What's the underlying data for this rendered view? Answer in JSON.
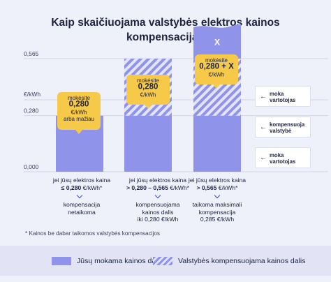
{
  "title_line1": "Kaip skaičiuojama valstybės elektros kainos",
  "title_line2": "kompensacija?",
  "chart_data": {
    "type": "bar",
    "stacked": true,
    "ylabel": "€/kWh",
    "yticks": [
      {
        "value": 0,
        "label": "0,000"
      },
      {
        "value": 0.28,
        "label": "0,280"
      },
      {
        "value": 0.565,
        "label": "0,565"
      }
    ],
    "ylim": [
      0,
      0.74
    ],
    "categories": [
      "jei jūsų elektros kaina ≤ 0,280 €/kWh*",
      "jei jūsų elektros kaina > 0,280 – 0,565 €/kWh*",
      "jei jūsų elektros kaina > 0,565 €/kWh*"
    ],
    "series": [
      {
        "name": "Jūsų mokama kainos dalis",
        "values": [
          0.28,
          0.28,
          0.28
        ],
        "pattern": "solid",
        "color": "#8f93ea"
      },
      {
        "name": "Valstybės kompensuojama kainos dalis",
        "values": [
          0,
          0.285,
          0.285
        ],
        "pattern": "hatched",
        "color": "#8f93ea"
      },
      {
        "name": "X",
        "values": [
          0,
          0,
          0.17
        ],
        "pattern": "solid",
        "color": "#8f93ea"
      }
    ],
    "callouts": [
      {
        "lines": [
          "mokėsite",
          "0,280",
          "€/kWh",
          "arba mažiau"
        ],
        "bold_line": 1
      },
      {
        "lines": [
          "mokėsite",
          "0,280",
          "€/kWh"
        ],
        "bold_line": 1
      },
      {
        "lines": [
          "mokėsite",
          "0,280 + X",
          "€/kWh"
        ],
        "bold_line": 1
      }
    ],
    "segment_label": "X"
  },
  "conditions": [
    {
      "line1": "jei jūsų elektros kaina",
      "line2_bold": "≤ 0,280",
      "line2_rest": " €/kWh*"
    },
    {
      "line1": "jei jūsų elektros kaina",
      "line2_bold": "> 0,280 – 0,565",
      "line2_rest": " €/kWh*"
    },
    {
      "line1": "jei jūsų elektros kaina",
      "line2_bold": "> 0,565",
      "line2_rest": " €/kWh*"
    }
  ],
  "results": [
    [
      "kompensacija",
      "netaikoma"
    ],
    [
      "kompensuojama",
      "kainos dalis",
      "iki 0,280 €/kWh"
    ],
    [
      "taikoma maksimali",
      "kompensacija",
      "0,285 €/kWh"
    ]
  ],
  "side_labels": [
    {
      "arrow": "←",
      "lines": [
        "moka",
        "vartotojas"
      ]
    },
    {
      "arrow": "←",
      "lines": [
        "kompensuoja",
        "valstybė"
      ]
    },
    {
      "arrow": "←",
      "lines": [
        "moka",
        "vartotojas"
      ]
    }
  ],
  "footnote": "* Kainos be dabar taikomos valstybės kompensacijos",
  "legend": {
    "solid_label": "Jūsų mokama kainos dalis",
    "hatched_label": "Valstybės kompensuojama kainos dalis"
  },
  "colors": {
    "bar": "#8f93ea",
    "hatch_light": "#e4e5fb",
    "callout": "#f7c948",
    "background": "#eef0fa",
    "grid": "#c9cce6"
  }
}
